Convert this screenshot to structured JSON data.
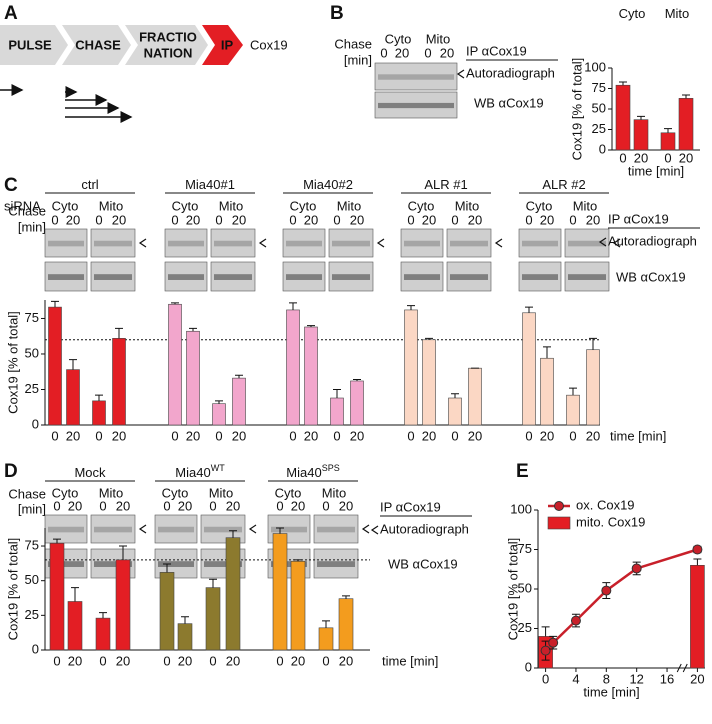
{
  "panel_labels": [
    "A",
    "B",
    "C",
    "D",
    "E"
  ],
  "panel_a": {
    "steps": [
      "PULSE",
      "CHASE"
    ],
    "fractionation": [
      "FRACTIO",
      "NATION"
    ],
    "ip": "IP",
    "target": "Cox19"
  },
  "blot_labels": {
    "chase": [
      "Chase",
      "[min]"
    ],
    "cyto": "Cyto",
    "mito": "Mito",
    "times": [
      "0",
      "20"
    ],
    "ip": "IP αCox19",
    "autoradiograph": "Autoradiograph",
    "wb": "WB αCox19",
    "sirna": "siRNA"
  },
  "chart_data": [
    {
      "type": "grouped_bar",
      "ylabel": "Cox19 [% of total]",
      "xlabel": "time [min]",
      "ylim": [
        0,
        100
      ],
      "yticks": [
        0,
        25,
        50,
        75,
        100
      ],
      "categories": [
        "0",
        "20"
      ],
      "color": "#e31e24",
      "groups": [
        {
          "name": "Cyto",
          "values": [
            79,
            37
          ],
          "errors": [
            4,
            4
          ]
        },
        {
          "name": "Mito",
          "values": [
            21,
            63
          ],
          "errors": [
            5,
            4
          ]
        }
      ]
    },
    {
      "type": "grouped_bar",
      "ylabel": "Cox19 [% of total]",
      "xlabel": "time [min]",
      "ylim": [
        0,
        88
      ],
      "yticks": [
        0,
        25,
        50,
        75
      ],
      "categories": [
        "0",
        "20",
        "0",
        "20"
      ],
      "reference_line": 60,
      "groups": [
        {
          "name": "ctrl",
          "color": "#e31e24",
          "values": [
            83,
            39,
            17,
            61
          ],
          "errors": [
            4,
            7,
            4,
            7
          ]
        },
        {
          "name": "Mia40#1",
          "color": "#f2a6cc",
          "values": [
            85,
            66,
            15,
            33
          ],
          "errors": [
            1,
            2,
            2,
            2
          ]
        },
        {
          "name": "Mia40#2",
          "color": "#f2a6cc",
          "values": [
            81,
            69,
            19,
            31
          ],
          "errors": [
            5,
            1,
            6,
            1
          ]
        },
        {
          "name": "ALR #1",
          "color": "#fbd7c4",
          "values": [
            81,
            60,
            19,
            40
          ],
          "errors": [
            3,
            1,
            3,
            0
          ]
        },
        {
          "name": "ALR #2",
          "color": "#fbd7c4",
          "values": [
            79,
            47,
            21,
            53
          ],
          "errors": [
            4,
            8,
            5,
            8
          ]
        }
      ]
    },
    {
      "type": "grouped_bar",
      "ylabel": "Cox19 [% of total]",
      "xlabel": "time [min]",
      "ylim": [
        0,
        88
      ],
      "yticks": [
        0,
        25,
        50,
        75
      ],
      "categories": [
        "0",
        "20",
        "0",
        "20"
      ],
      "reference_line": 65,
      "groups": [
        {
          "name": "Mock",
          "color": "#e31e24",
          "values": [
            77,
            35,
            23,
            65
          ],
          "errors": [
            3,
            10,
            4,
            10
          ]
        },
        {
          "name": "Mia40",
          "superscript": "WT",
          "color": "#8c7a2e",
          "values": [
            56,
            19,
            45,
            81
          ],
          "errors": [
            6,
            5,
            6,
            5
          ]
        },
        {
          "name": "Mia40",
          "superscript": "SPS",
          "color": "#f39c1e",
          "values": [
            84,
            64,
            16,
            37
          ],
          "errors": [
            4,
            1,
            5,
            2
          ]
        }
      ]
    },
    {
      "type": "combo",
      "ylabel": "Cox19 [% of total]",
      "xlabel": "time [min]",
      "xlim": [
        -1,
        21
      ],
      "xticks": [
        0,
        4,
        8,
        12,
        16,
        20
      ],
      "ylim": [
        0,
        100
      ],
      "yticks": [
        0,
        25,
        50,
        75,
        100
      ],
      "series": [
        {
          "name": "ox. Cox19",
          "kind": "line",
          "color": "#c8202a",
          "x": [
            0,
            1,
            4,
            8,
            12,
            20
          ],
          "values": [
            11,
            16,
            30,
            49,
            63,
            75
          ],
          "errors": [
            6,
            4,
            4,
            5,
            4,
            2
          ]
        },
        {
          "name": "mito. Cox19",
          "kind": "bar",
          "color": "#e31e24",
          "x": [
            0,
            20
          ],
          "values": [
            20,
            65
          ],
          "errors": [
            6,
            4
          ]
        }
      ]
    }
  ]
}
